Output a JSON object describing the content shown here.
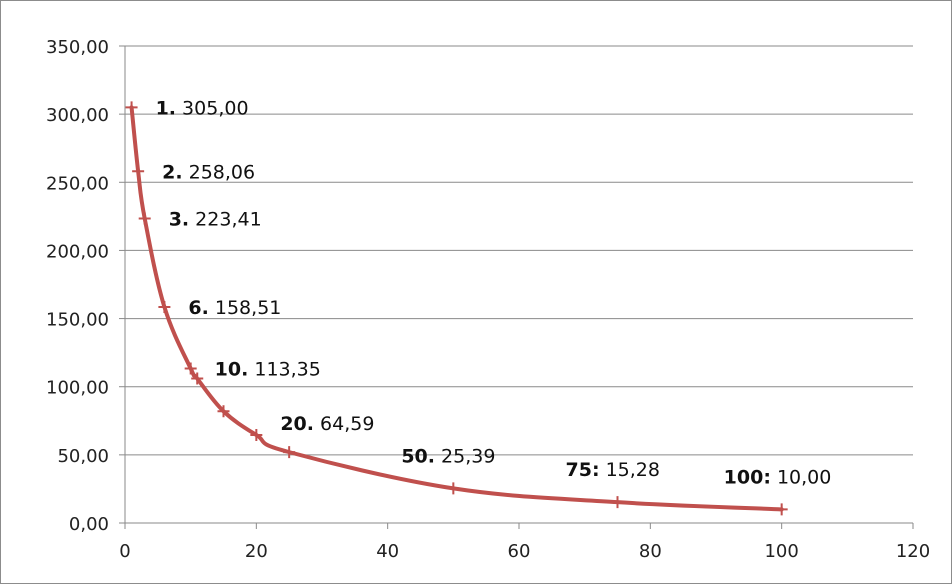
{
  "chart_data": {
    "type": "line",
    "title": "",
    "xlabel": "",
    "ylabel": "",
    "xlim": [
      0,
      120
    ],
    "ylim": [
      0,
      350
    ],
    "x_ticks": [
      "0",
      "20",
      "40",
      "60",
      "80",
      "100",
      "120"
    ],
    "y_ticks": [
      "0,00",
      "50,00",
      "100,00",
      "150,00",
      "200,00",
      "250,00",
      "300,00",
      "350,00"
    ],
    "grid": "horizontal",
    "legend": "none",
    "line_color": "#c0504d",
    "series": [
      {
        "x": [
          1,
          2,
          3,
          6,
          10,
          11,
          15,
          20,
          25,
          50,
          75,
          100
        ],
        "y": [
          305.0,
          258.06,
          223.41,
          158.51,
          113.35,
          106,
          82,
          64.59,
          52,
          25.39,
          15.28,
          10.0
        ]
      }
    ],
    "annotations": [
      {
        "x": 1,
        "y": 305.0,
        "num": "1.",
        "value": "305,00"
      },
      {
        "x": 2,
        "y": 258.06,
        "num": "2.",
        "value": "258,06"
      },
      {
        "x": 3,
        "y": 223.41,
        "num": "3.",
        "value": "223,41"
      },
      {
        "x": 6,
        "y": 158.51,
        "num": "6.",
        "value": "158,51"
      },
      {
        "x": 10,
        "y": 113.35,
        "num": "10.",
        "value": "113,35"
      },
      {
        "x": 20,
        "y": 64.59,
        "num": "20.",
        "value": "64,59"
      },
      {
        "x": 50,
        "y": 25.39,
        "num": "50.",
        "value": "25,39"
      },
      {
        "x": 75,
        "y": 15.28,
        "num": "75:",
        "value": "15,28"
      },
      {
        "x": 100,
        "y": 10.0,
        "num": "100:",
        "value": "10,00"
      }
    ]
  }
}
